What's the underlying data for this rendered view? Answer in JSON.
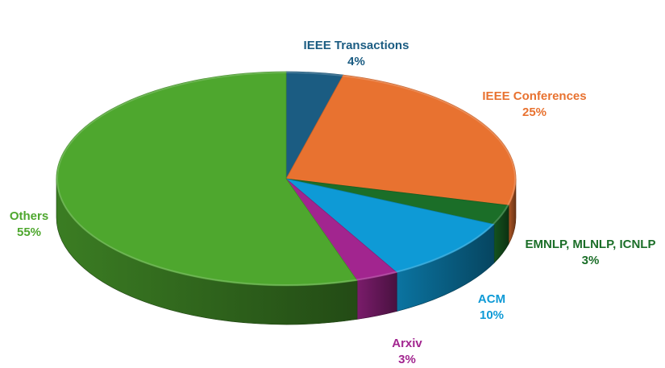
{
  "chart_data": {
    "type": "pie",
    "title": "",
    "slices": [
      {
        "label": "IEEE Transactions",
        "value": 4,
        "value_label": "4%",
        "color": "#1b5c82"
      },
      {
        "label": "IEEE Conferences",
        "value": 25,
        "value_label": "25%",
        "color": "#e87230"
      },
      {
        "label": "EMNLP, MLNLP, ICNLP",
        "value": 3,
        "value_label": "3%",
        "color": "#1b6e28"
      },
      {
        "label": "ACM",
        "value": 10,
        "value_label": "10%",
        "color": "#0e9ad6"
      },
      {
        "label": "Arxiv",
        "value": 3,
        "value_label": "3%",
        "color": "#a2258f"
      },
      {
        "label": "Others",
        "value": 55,
        "value_label": "55%",
        "color": "#4ea72e"
      }
    ],
    "style": "3d",
    "legend": "none",
    "label_position": "outside"
  }
}
